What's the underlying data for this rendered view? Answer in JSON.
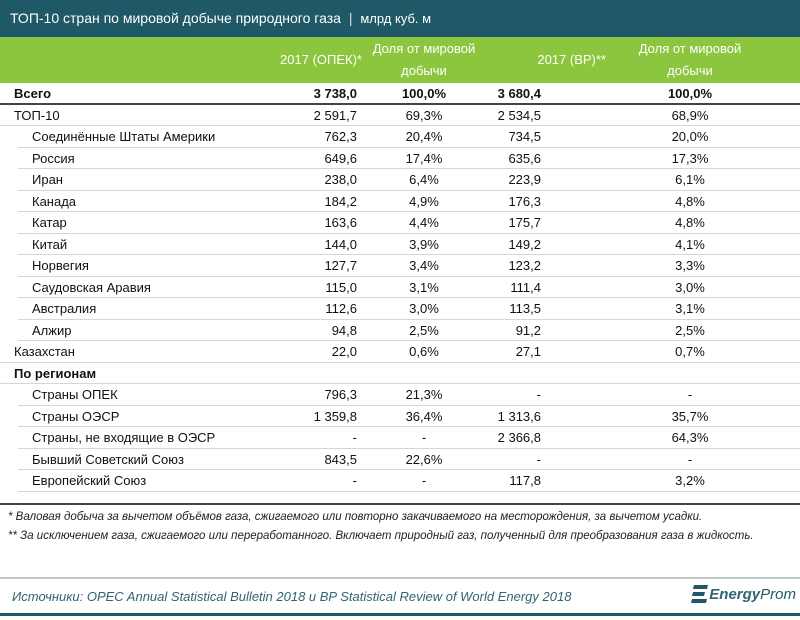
{
  "title": "ТОП-10 стран по мировой добыче природного газа",
  "title_separator": "|",
  "unit": "млрд куб. м",
  "colors": {
    "title_bg": "#1f5866",
    "header_bg": "#8cc63f"
  },
  "chart_data": {
    "type": "table",
    "title": "ТОП-10 стран по мировой добыче природного газа | млрд куб. м",
    "columns": [
      "",
      "2017 (ОПЕК)*",
      "Доля от мировой добычи",
      "2017 (BP)**",
      "Доля от мировой добычи"
    ],
    "rows": [
      {
        "label": "Всего",
        "values": [
          "3 738,0",
          "100,0%",
          "3 680,4",
          "100,0%"
        ],
        "style": "total"
      },
      {
        "label": "ТОП-10",
        "values": [
          "2 591,7",
          "69,3%",
          "2 534,5",
          "68,9%"
        ],
        "style": "plain"
      },
      {
        "label": "Соединённые Штаты Америки",
        "values": [
          "762,3",
          "20,4%",
          "734,5",
          "20,0%"
        ],
        "style": "ind"
      },
      {
        "label": "Россия",
        "values": [
          "649,6",
          "17,4%",
          "635,6",
          "17,3%"
        ],
        "style": "ind"
      },
      {
        "label": "Иран",
        "values": [
          "238,0",
          "6,4%",
          "223,9",
          "6,1%"
        ],
        "style": "ind"
      },
      {
        "label": "Канада",
        "values": [
          "184,2",
          "4,9%",
          "176,3",
          "4,8%"
        ],
        "style": "ind"
      },
      {
        "label": "Катар",
        "values": [
          "163,6",
          "4,4%",
          "175,7",
          "4,8%"
        ],
        "style": "ind"
      },
      {
        "label": "Китай",
        "values": [
          "144,0",
          "3,9%",
          "149,2",
          "4,1%"
        ],
        "style": "ind"
      },
      {
        "label": "Норвегия",
        "values": [
          "127,7",
          "3,4%",
          "123,2",
          "3,3%"
        ],
        "style": "ind"
      },
      {
        "label": "Саудовская Аравия",
        "values": [
          "115,0",
          "3,1%",
          "111,4",
          "3,0%"
        ],
        "style": "ind"
      },
      {
        "label": "Австралия",
        "values": [
          "112,6",
          "3,0%",
          "113,5",
          "3,1%"
        ],
        "style": "ind"
      },
      {
        "label": "Алжир",
        "values": [
          "94,8",
          "2,5%",
          "91,2",
          "2,5%"
        ],
        "style": "ind"
      },
      {
        "label": "Казахстан",
        "values": [
          "22,0",
          "0,6%",
          "27,1",
          "0,7%"
        ],
        "style": "plain"
      },
      {
        "label": "По регионам",
        "values": [
          "",
          "",
          "",
          ""
        ],
        "style": "bold"
      },
      {
        "label": "Страны ОПЕК",
        "values": [
          "796,3",
          "21,3%",
          "-",
          "-"
        ],
        "style": "ind"
      },
      {
        "label": "Страны ОЭСР",
        "values": [
          "1 359,8",
          "36,4%",
          "1 313,6",
          "35,7%"
        ],
        "style": "ind"
      },
      {
        "label": "Страны, не входящие в ОЭСР",
        "values": [
          "-",
          "-",
          "2 366,8",
          "64,3%"
        ],
        "style": "ind"
      },
      {
        "label": "Бывший Советский Союз",
        "values": [
          "843,5",
          "22,6%",
          "-",
          "-"
        ],
        "style": "ind"
      },
      {
        "label": "Европейский Союз",
        "values": [
          "-",
          "-",
          "117,8",
          "3,2%"
        ],
        "style": "ind"
      }
    ]
  },
  "header": {
    "col1": "2017 (ОПЕК)*",
    "col2": "Доля от мировой добычи",
    "col3": "2017 (BP)**",
    "col4": "Доля от мировой добычи"
  },
  "notes": [
    "* Валовая добыча за вычетом объёмов газа, сжигаемого или повторно закачиваемого на месторождения, за вычетом усадки.",
    "** За исключением газа, сжигаемого или переработанного. Включает природный газ, полученный для преобразования газа в жидкость."
  ],
  "source": "Источники: OPEC Annual Statistical Bulletin 2018 и BP Statistical Review of World Energy 2018",
  "logo": {
    "part1": "Energy",
    "part2": "Prom",
    "icon": "energyprom-logo-icon"
  }
}
